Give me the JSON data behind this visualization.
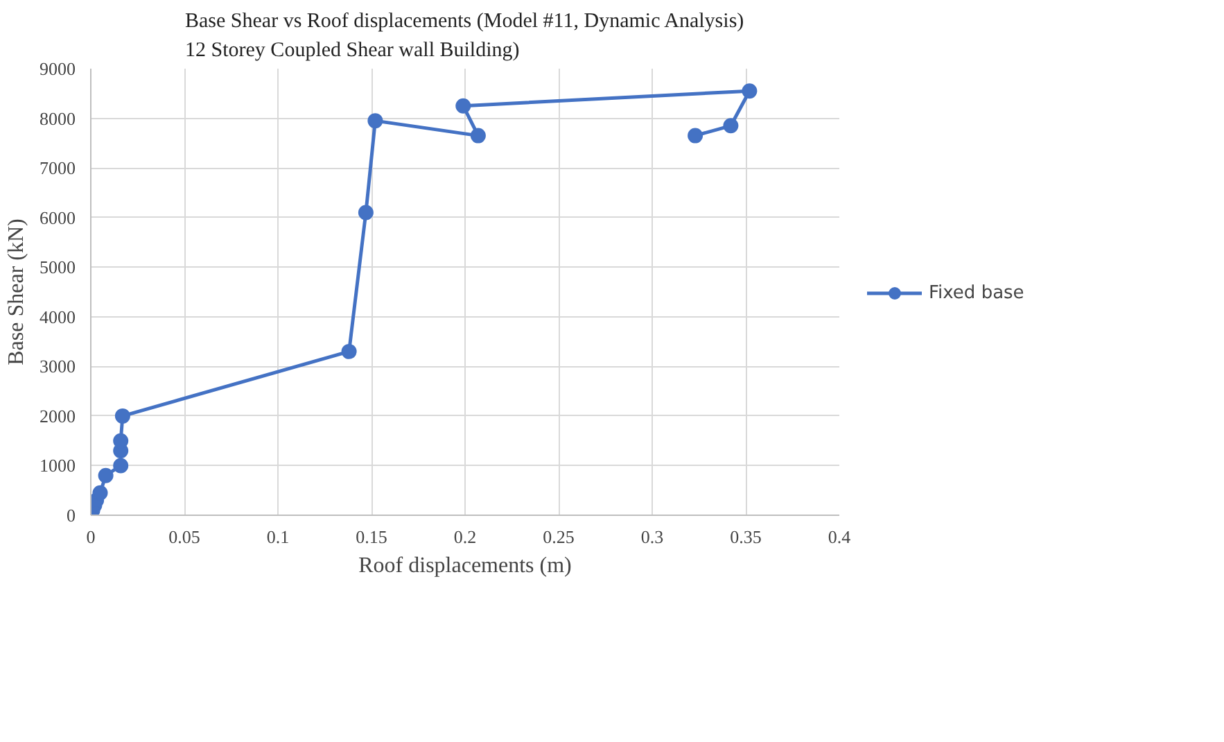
{
  "chart_data": {
    "type": "line",
    "title": "Base Shear vs Roof displacements (Model #11, Dynamic Analysis)\n12 Storey Coupled Shear wall Building)",
    "xlabel": "Roof displacements (m)",
    "ylabel": "Base Shear (kN)",
    "x": [
      0,
      0.001,
      0.002,
      0.003,
      0.005,
      0.008,
      0.016,
      0.016,
      0.016,
      0.017,
      0.138,
      0.147,
      0.152,
      0.207,
      0.199,
      0.352,
      0.342,
      0.323
    ],
    "series": [
      {
        "name": "Fixed base",
        "color": "#4472c4",
        "values": [
          0,
          100,
          200,
          300,
          450,
          800,
          1000,
          1300,
          1500,
          2000,
          3300,
          6100,
          7950,
          7650,
          8250,
          8550,
          7850,
          7650
        ]
      }
    ],
    "xlim": [
      0,
      0.4
    ],
    "ylim": [
      0,
      9000
    ],
    "xticks": [
      0,
      0.05,
      0.1,
      0.15,
      0.2,
      0.25,
      0.3,
      0.35,
      0.4
    ],
    "yticks": [
      0,
      1000,
      2000,
      3000,
      4000,
      5000,
      6000,
      7000,
      8000,
      9000
    ],
    "grid": true,
    "legend": "right",
    "marker": "circle",
    "line_style": "solid"
  }
}
